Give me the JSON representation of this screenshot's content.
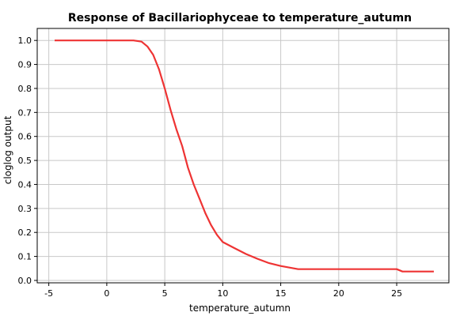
{
  "chart_data": {
    "type": "line",
    "title": "Response of Bacillariophyceae to temperature_autumn",
    "xlabel": "temperature_autumn",
    "ylabel": "cloglog output",
    "xlim": [
      -6,
      29.5
    ],
    "ylim": [
      -0.01,
      1.05
    ],
    "grid": true,
    "x_ticks": [
      -5,
      0,
      5,
      10,
      15,
      20,
      25
    ],
    "y_ticks": [
      0.0,
      0.1,
      0.2,
      0.3,
      0.4,
      0.5,
      0.6,
      0.7,
      0.8,
      0.9,
      1.0
    ],
    "x_tick_labels": [
      "-5",
      "0",
      "5",
      "10",
      "15",
      "20",
      "25"
    ],
    "y_tick_labels": [
      "0.0",
      "0.1",
      "0.2",
      "0.3",
      "0.4",
      "0.5",
      "0.6",
      "0.7",
      "0.8",
      "0.9",
      "1.0"
    ],
    "series": [
      {
        "color": "#ee3333",
        "x": [
          -4.5,
          2.3,
          3.0,
          3.5,
          4.0,
          4.5,
          5.0,
          5.5,
          6.0,
          6.5,
          7.0,
          7.5,
          8.0,
          8.5,
          9.0,
          9.5,
          10.0,
          11.0,
          12.0,
          13.0,
          14.0,
          15.0,
          16.5,
          25.0,
          25.5,
          28.2
        ],
        "y": [
          1.0,
          1.0,
          0.995,
          0.975,
          0.94,
          0.88,
          0.8,
          0.71,
          0.63,
          0.56,
          0.47,
          0.4,
          0.34,
          0.28,
          0.23,
          0.19,
          0.16,
          0.135,
          0.11,
          0.09,
          0.072,
          0.06,
          0.047,
          0.047,
          0.037,
          0.037
        ]
      }
    ]
  }
}
